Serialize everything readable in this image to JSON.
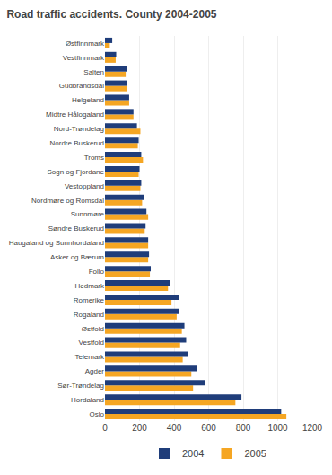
{
  "chart_data": {
    "type": "bar",
    "orientation": "horizontal",
    "title": "Road traffic accidents. County 2004-2005",
    "categories": [
      "Oslo",
      "Hordaland",
      "Sør-Trøndelag",
      "Agder",
      "Telemark",
      "Vestfold",
      "Østfold",
      "Rogaland",
      "Romerike",
      "Hedmark",
      "Follo",
      "Asker og Bærum",
      "Haugaland og Sunnhordaland",
      "Søndre Buskerud",
      "Sunnmøre",
      "Nordmøre og Romsdal",
      "Vestoppland",
      "Sogn og Fjordane",
      "Troms",
      "Nordre Buskerud",
      "Nord-Trøndelag",
      "Midtre Hålogaland",
      "Helgeland",
      "Gudbrandsdal",
      "Salten",
      "Vestfinnmark",
      "Østfinnmark"
    ],
    "series": [
      {
        "name": "2004",
        "color": "#1f3d7a",
        "values": [
          1020,
          790,
          580,
          535,
          480,
          470,
          460,
          430,
          430,
          375,
          265,
          255,
          250,
          235,
          240,
          225,
          210,
          200,
          210,
          195,
          185,
          165,
          140,
          130,
          130,
          65,
          42
        ]
      },
      {
        "name": "2005",
        "color": "#f5a623",
        "values": [
          1050,
          755,
          510,
          500,
          450,
          435,
          445,
          415,
          385,
          365,
          260,
          250,
          250,
          230,
          250,
          215,
          205,
          195,
          220,
          190,
          205,
          165,
          140,
          128,
          120,
          62,
          28
        ]
      }
    ],
    "xlim": [
      0,
      1200
    ],
    "xticks": [
      0,
      200,
      400,
      600,
      800,
      1000,
      1200
    ],
    "grid": true,
    "legend": "bottom"
  }
}
